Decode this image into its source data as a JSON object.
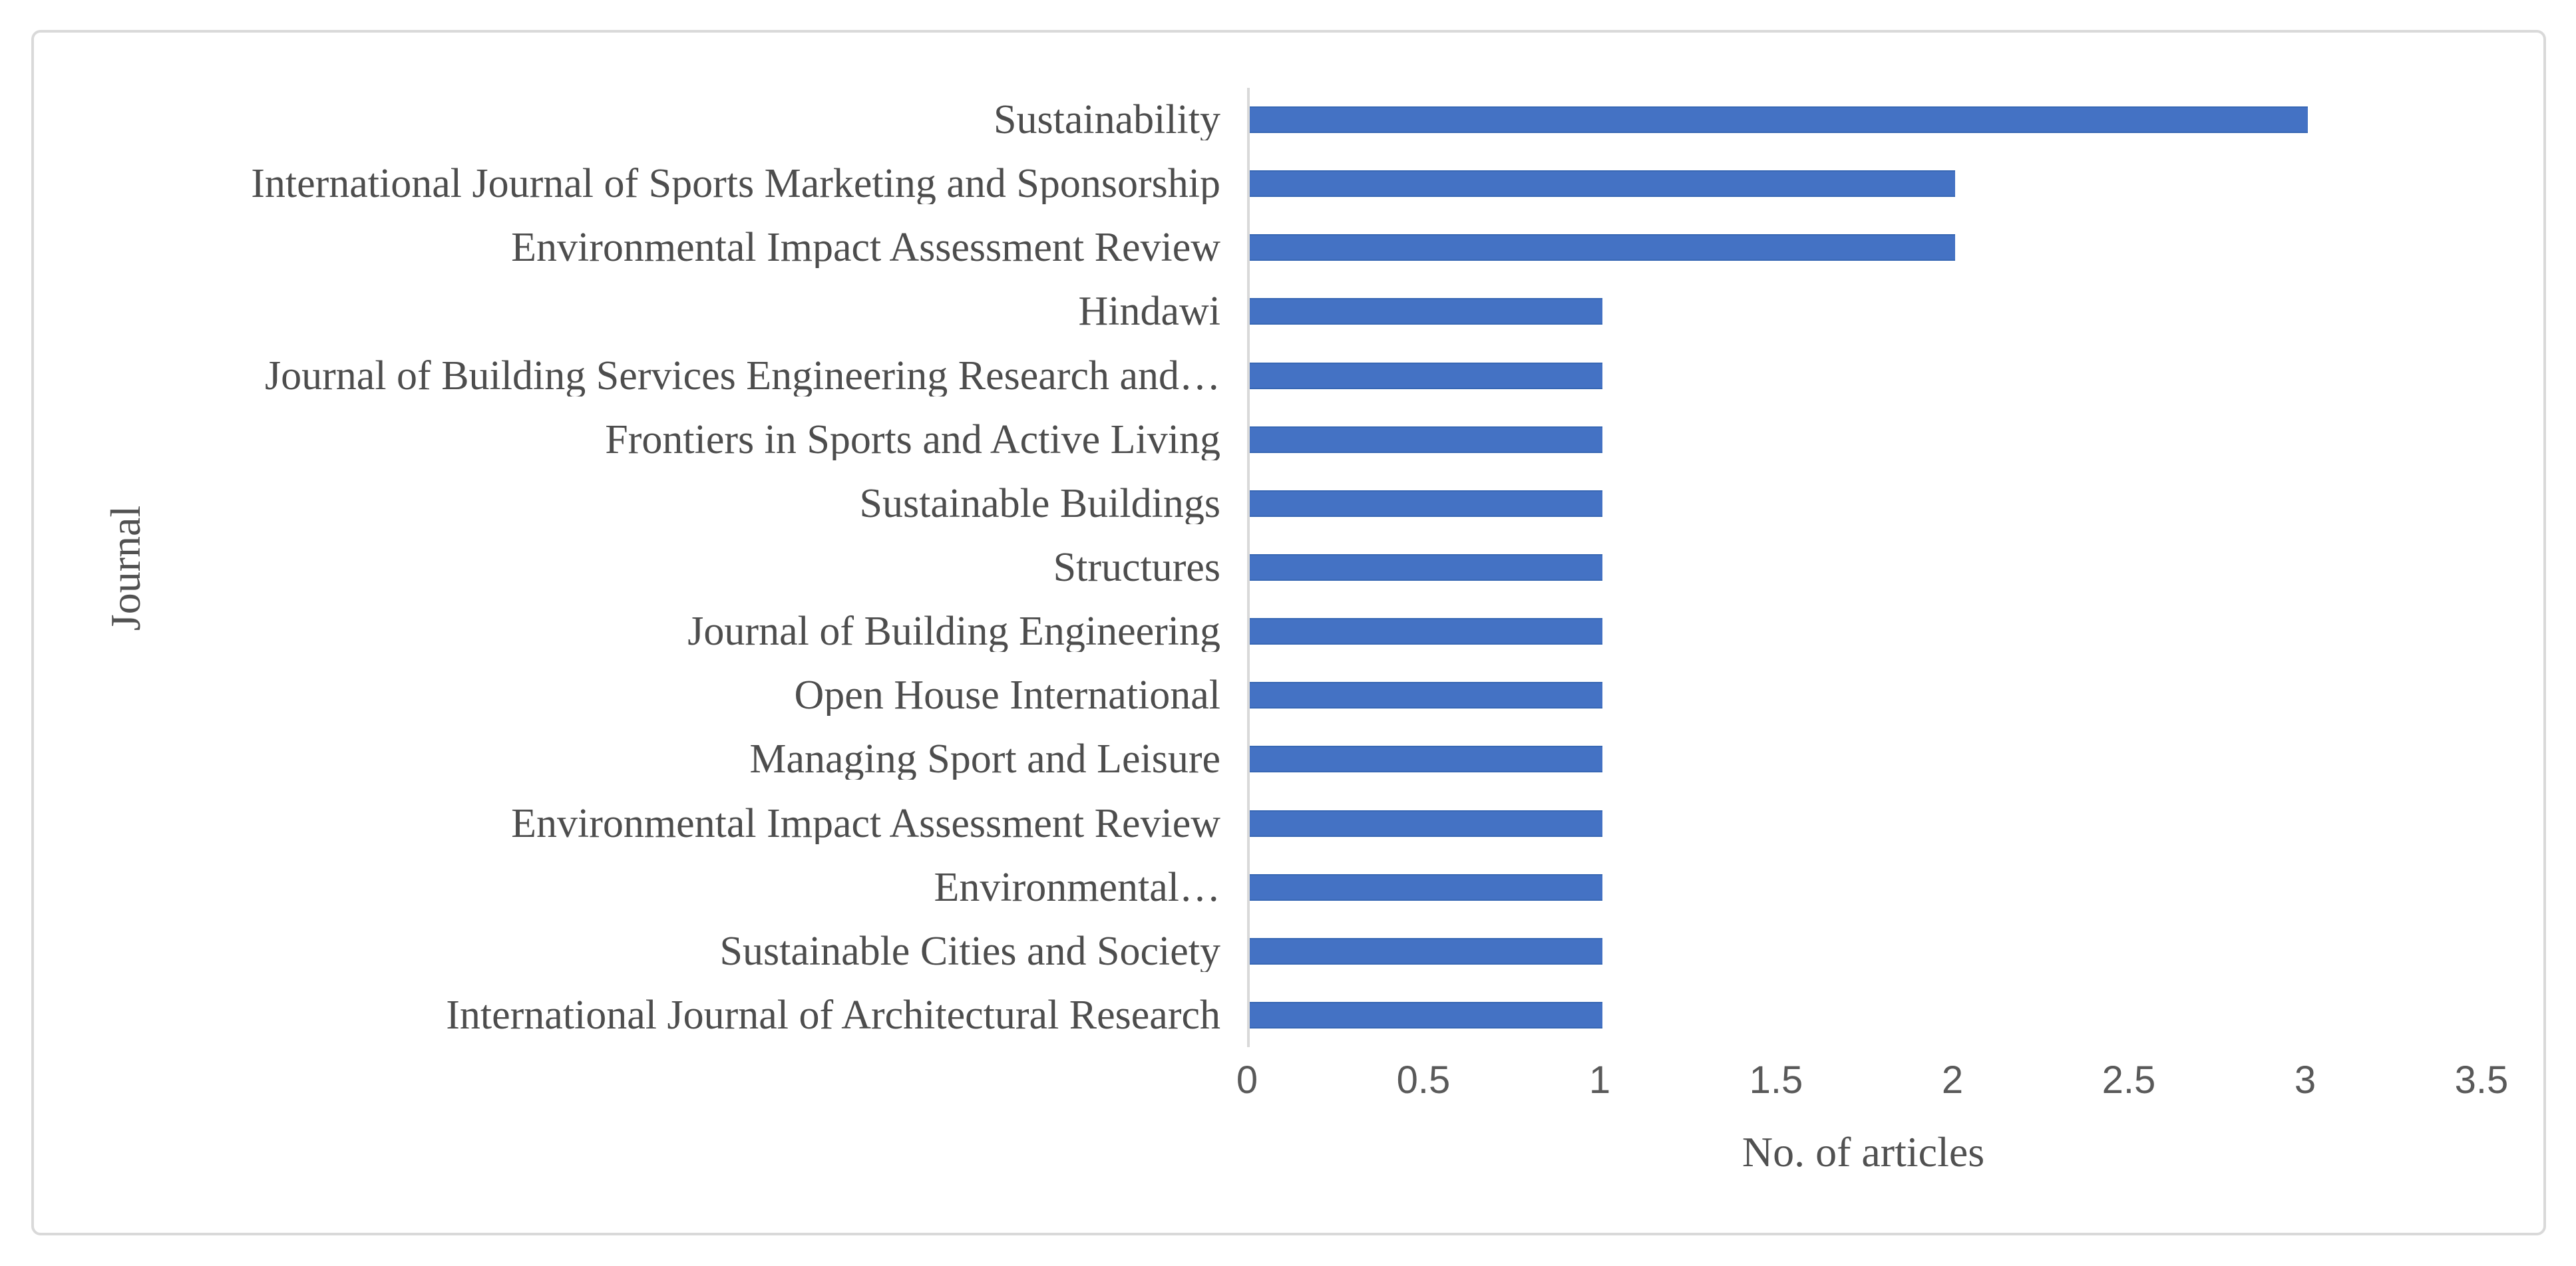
{
  "chart_data": {
    "type": "bar",
    "orientation": "horizontal",
    "title": "",
    "xlabel": "No. of articles",
    "ylabel": "Journal",
    "categories": [
      "Sustainability",
      "International Journal of Sports Marketing and Sponsorship",
      "Environmental Impact Assessment Review",
      "Hindawi",
      "Journal of Building Services Engineering Research and…",
      "Frontiers in Sports and Active Living",
      "Sustainable Buildings",
      "Structures",
      "Journal of Building Engineering",
      "Open House International",
      "Managing Sport and Leisure",
      "Environmental Impact Assessment Review",
      "Environmental…",
      "Sustainable Cities and Society",
      "International Journal of Architectural Research"
    ],
    "values": [
      3,
      2,
      2,
      1,
      1,
      1,
      1,
      1,
      1,
      1,
      1,
      1,
      1,
      1,
      1
    ],
    "x_ticks": [
      0,
      0.5,
      1,
      1.5,
      2,
      2.5,
      3,
      3.5
    ],
    "x_tick_labels": [
      "0",
      "0.5",
      "1",
      "1.5",
      "2",
      "2.5",
      "3",
      "3.5"
    ],
    "xlim": [
      0,
      3.5
    ],
    "grid": "off",
    "legend": "none",
    "bar_color": "#4472C4",
    "axis_line_color": "#D9D9D9",
    "text_color": "#595959"
  }
}
